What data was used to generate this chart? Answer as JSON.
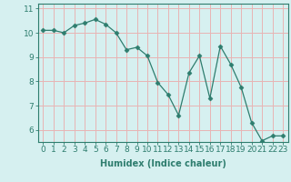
{
  "x": [
    0,
    1,
    2,
    3,
    4,
    5,
    6,
    7,
    8,
    9,
    10,
    11,
    12,
    13,
    14,
    15,
    16,
    17,
    18,
    19,
    20,
    21,
    22,
    23
  ],
  "y": [
    10.1,
    10.1,
    10.0,
    10.3,
    10.4,
    10.55,
    10.35,
    10.0,
    9.3,
    9.4,
    9.05,
    7.95,
    7.45,
    6.6,
    8.35,
    9.05,
    7.3,
    9.45,
    8.7,
    7.75,
    6.3,
    5.55,
    5.75,
    5.75
  ],
  "line_color": "#2e7d6e",
  "marker": "D",
  "marker_size": 2.5,
  "bg_color": "#d6f0f0",
  "grid_color": "#e8b4b4",
  "xlabel": "Humidex (Indice chaleur)",
  "xlim": [
    -0.5,
    23.5
  ],
  "ylim": [
    5.5,
    11.2
  ],
  "yticks": [
    6,
    7,
    8,
    9,
    10,
    11
  ],
  "xticks": [
    0,
    1,
    2,
    3,
    4,
    5,
    6,
    7,
    8,
    9,
    10,
    11,
    12,
    13,
    14,
    15,
    16,
    17,
    18,
    19,
    20,
    21,
    22,
    23
  ],
  "xlabel_fontsize": 7,
  "tick_fontsize": 6.5,
  "spine_color": "#2e7d6e",
  "tick_color": "#2e7d6e"
}
